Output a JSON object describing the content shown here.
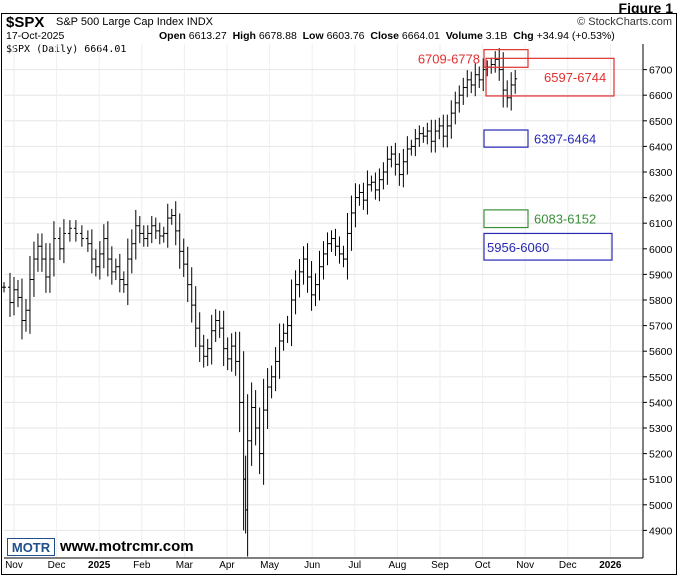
{
  "figure_label": "Figure 1",
  "header": {
    "symbol": "$SPX",
    "index_name": "S&P 500 Large Cap Index",
    "exchange": "INDX",
    "credit": "© StockCharts.com",
    "date": "17-Oct-2025",
    "open_label": "Open",
    "open": "6613.27",
    "high_label": "High",
    "high": "6678.88",
    "low_label": "Low",
    "low": "6603.76",
    "close_label": "Close",
    "close": "6664.01",
    "volume_label": "Volume",
    "volume": "3.1B",
    "chg_label": "Chg",
    "chg": "+34.94 (+0.53%)"
  },
  "legend": "$SPX (Daily) 6664.01",
  "footer": {
    "logo": "MOTR",
    "website": "www.motrcmr.com"
  },
  "colors": {
    "red": "#e03030",
    "blue": "#2828b4",
    "green": "#3a8f3a",
    "bars": "#000000"
  },
  "chart_data": {
    "type": "ohlc",
    "y_axis": {
      "min": 4800,
      "max": 6800,
      "ticks": [
        4900,
        5000,
        5100,
        5200,
        5300,
        5400,
        5500,
        5600,
        5700,
        5800,
        5900,
        6000,
        6100,
        6200,
        6300,
        6400,
        6500,
        6600,
        6700
      ]
    },
    "x_axis": {
      "labels": [
        "Nov",
        "Dec",
        "2025",
        "Feb",
        "Mar",
        "Apr",
        "May",
        "Jun",
        "Jul",
        "Aug",
        "Sep",
        "Oct",
        "Nov",
        "Dec",
        "2026"
      ]
    },
    "grid": true,
    "price_path": [
      [
        0,
        5850
      ],
      [
        6,
        5790
      ],
      [
        10,
        5840
      ],
      [
        14,
        5810
      ],
      [
        18,
        5720
      ],
      [
        22,
        5760
      ],
      [
        26,
        5880
      ],
      [
        30,
        5960
      ],
      [
        34,
        6010
      ],
      [
        38,
        5960
      ],
      [
        42,
        5890
      ],
      [
        46,
        5960
      ],
      [
        50,
        6040
      ],
      [
        56,
        6000
      ],
      [
        60,
        6060
      ],
      [
        66,
        6080
      ],
      [
        72,
        6060
      ],
      [
        78,
        6040
      ],
      [
        84,
        6020
      ],
      [
        88,
        5960
      ],
      [
        92,
        5930
      ],
      [
        96,
        5980
      ],
      [
        100,
        6040
      ],
      [
        104,
        5960
      ],
      [
        108,
        5910
      ],
      [
        112,
        5930
      ],
      [
        116,
        5880
      ],
      [
        120,
        5860
      ],
      [
        124,
        5960
      ],
      [
        128,
        6020
      ],
      [
        132,
        6090
      ],
      [
        136,
        6060
      ],
      [
        140,
        6040
      ],
      [
        144,
        6060
      ],
      [
        148,
        6090
      ],
      [
        152,
        6070
      ],
      [
        156,
        6050
      ],
      [
        160,
        6060
      ],
      [
        164,
        6120
      ],
      [
        168,
        6130
      ],
      [
        172,
        6070
      ],
      [
        176,
        5990
      ],
      [
        180,
        5940
      ],
      [
        184,
        5860
      ],
      [
        188,
        5780
      ],
      [
        192,
        5690
      ],
      [
        196,
        5620
      ],
      [
        200,
        5580
      ],
      [
        204,
        5610
      ],
      [
        208,
        5680
      ],
      [
        212,
        5720
      ],
      [
        216,
        5690
      ],
      [
        220,
        5610
      ],
      [
        224,
        5570
      ],
      [
        228,
        5620
      ],
      [
        232,
        5560
      ],
      [
        236,
        5400
      ],
      [
        240,
        5100
      ],
      [
        242,
        4980
      ],
      [
        244,
        5250
      ],
      [
        248,
        5380
      ],
      [
        252,
        5300
      ],
      [
        256,
        5200
      ],
      [
        260,
        5370
      ],
      [
        264,
        5460
      ],
      [
        268,
        5500
      ],
      [
        272,
        5560
      ],
      [
        276,
        5640
      ],
      [
        280,
        5670
      ],
      [
        284,
        5700
      ],
      [
        288,
        5800
      ],
      [
        292,
        5860
      ],
      [
        296,
        5910
      ],
      [
        300,
        5960
      ],
      [
        304,
        5890
      ],
      [
        308,
        5820
      ],
      [
        312,
        5860
      ],
      [
        316,
        5930
      ],
      [
        320,
        5980
      ],
      [
        324,
        6020
      ],
      [
        328,
        6040
      ],
      [
        332,
        6010
      ],
      [
        336,
        5980
      ],
      [
        340,
        5960
      ],
      [
        344,
        6060
      ],
      [
        348,
        6140
      ],
      [
        352,
        6200
      ],
      [
        356,
        6220
      ],
      [
        360,
        6190
      ],
      [
        364,
        6250
      ],
      [
        368,
        6260
      ],
      [
        372,
        6230
      ],
      [
        376,
        6270
      ],
      [
        380,
        6300
      ],
      [
        384,
        6350
      ],
      [
        388,
        6370
      ],
      [
        392,
        6330
      ],
      [
        396,
        6290
      ],
      [
        400,
        6340
      ],
      [
        404,
        6390
      ],
      [
        408,
        6400
      ],
      [
        412,
        6430
      ],
      [
        416,
        6450
      ],
      [
        420,
        6440
      ],
      [
        424,
        6460
      ],
      [
        428,
        6420
      ],
      [
        432,
        6460
      ],
      [
        436,
        6480
      ],
      [
        440,
        6440
      ],
      [
        444,
        6480
      ],
      [
        448,
        6530
      ],
      [
        452,
        6570
      ],
      [
        456,
        6600
      ],
      [
        460,
        6630
      ],
      [
        464,
        6660
      ],
      [
        468,
        6640
      ],
      [
        472,
        6680
      ],
      [
        476,
        6660
      ],
      [
        480,
        6700
      ],
      [
        484,
        6710
      ],
      [
        488,
        6720
      ],
      [
        492,
        6740
      ],
      [
        496,
        6700
      ],
      [
        500,
        6620
      ],
      [
        504,
        6590
      ],
      [
        508,
        6640
      ],
      [
        512,
        6664
      ]
    ],
    "zones": [
      {
        "label": "6709-6778",
        "low": 6709,
        "high": 6778,
        "color": "red",
        "label_side": "left"
      },
      {
        "label": "6597-6744",
        "low": 6597,
        "high": 6744,
        "color": "red",
        "label_side": "inside"
      },
      {
        "label": "6397-6464",
        "low": 6397,
        "high": 6464,
        "color": "blue",
        "label_side": "right"
      },
      {
        "label": "6083-6152",
        "low": 6083,
        "high": 6152,
        "color": "green",
        "label_side": "right"
      },
      {
        "label": "5956-6060",
        "low": 5956,
        "high": 6060,
        "color": "blue",
        "label_side": "inside"
      }
    ]
  }
}
